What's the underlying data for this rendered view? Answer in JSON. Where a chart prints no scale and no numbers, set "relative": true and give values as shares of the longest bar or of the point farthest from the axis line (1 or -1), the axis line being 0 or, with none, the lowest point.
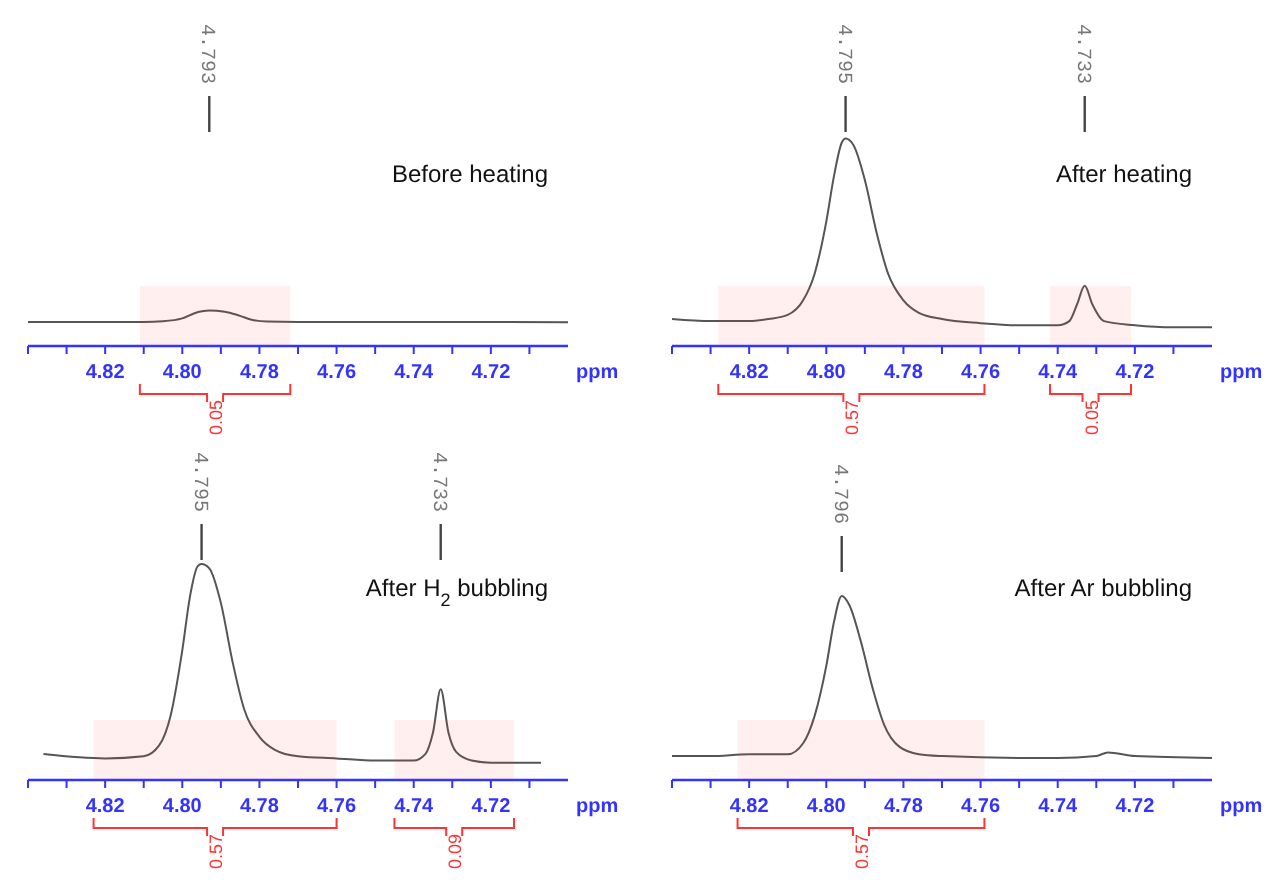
{
  "chart_data": [
    {
      "type": "line",
      "title": "Before heating",
      "xlabel": "ppm",
      "xlim": [
        4.84,
        4.7
      ],
      "relative": true,
      "xticks": [
        {
          "value": 4.84,
          "label": null
        },
        {
          "value": 4.83,
          "label": null
        },
        {
          "value": 4.82,
          "label": "4.82"
        },
        {
          "value": 4.81,
          "label": null
        },
        {
          "value": 4.8,
          "label": "4.80"
        },
        {
          "value": 4.79,
          "label": null
        },
        {
          "value": 4.78,
          "label": "4.78"
        },
        {
          "value": 4.77,
          "label": null
        },
        {
          "value": 4.76,
          "label": "4.76"
        },
        {
          "value": 4.75,
          "label": null
        },
        {
          "value": 4.74,
          "label": "4.74"
        },
        {
          "value": 4.73,
          "label": null
        },
        {
          "value": 4.72,
          "label": "4.72"
        },
        {
          "value": 4.71,
          "label": null
        }
      ],
      "series": [
        {
          "color": "#555555",
          "x": [
            4.84,
            4.82,
            4.81,
            4.805,
            4.8,
            4.797,
            4.793,
            4.789,
            4.785,
            4.782,
            4.778,
            4.77,
            4.75,
            4.73,
            4.7
          ],
          "values": [
            0.68,
            0.68,
            0.68,
            0.7,
            0.78,
            0.92,
            1,
            0.97,
            0.85,
            0.74,
            0.69,
            0.68,
            0.68,
            0.68,
            0.67
          ]
        }
      ],
      "annotations": [
        {
          "text": "4.793",
          "x": 4.793
        }
      ],
      "bands": [
        {
          "axis": "x",
          "from": 4.811,
          "to": 4.772,
          "label": "0.05",
          "color": "#ff3333"
        }
      ]
    },
    {
      "type": "line",
      "title": "After heating",
      "xlabel": "ppm",
      "xlim": [
        4.84,
        4.7
      ],
      "relative": true,
      "xticks": [
        {
          "value": 4.84,
          "label": null
        },
        {
          "value": 4.83,
          "label": null
        },
        {
          "value": 4.82,
          "label": "4.82"
        },
        {
          "value": 4.81,
          "label": null
        },
        {
          "value": 4.8,
          "label": "4.80"
        },
        {
          "value": 4.79,
          "label": null
        },
        {
          "value": 4.78,
          "label": "4.78"
        },
        {
          "value": 4.77,
          "label": null
        },
        {
          "value": 4.76,
          "label": "4.76"
        },
        {
          "value": 4.75,
          "label": null
        },
        {
          "value": 4.74,
          "label": "4.74"
        },
        {
          "value": 4.73,
          "label": null
        },
        {
          "value": 4.72,
          "label": "4.72"
        },
        {
          "value": 4.71,
          "label": null
        }
      ],
      "series": [
        {
          "color": "#555555",
          "x": [
            4.84,
            4.83,
            4.82,
            4.815,
            4.81,
            4.806,
            4.803,
            4.8,
            4.798,
            4.796,
            4.795,
            4.793,
            4.79,
            4.787,
            4.784,
            4.78,
            4.776,
            4.77,
            4.76,
            4.75,
            4.74,
            4.737,
            4.735,
            4.733,
            4.731,
            4.728,
            4.72,
            4.71,
            4.7
          ],
          "values": [
            0.13,
            0.12,
            0.12,
            0.13,
            0.15,
            0.22,
            0.35,
            0.6,
            0.82,
            0.98,
            1,
            0.97,
            0.8,
            0.55,
            0.35,
            0.22,
            0.16,
            0.13,
            0.11,
            0.1,
            0.1,
            0.12,
            0.2,
            0.29,
            0.2,
            0.12,
            0.1,
            0.09,
            0.09
          ]
        }
      ],
      "annotations": [
        {
          "text": "4.795",
          "x": 4.795
        },
        {
          "text": "4.733",
          "x": 4.733
        }
      ],
      "bands": [
        {
          "axis": "x",
          "from": 4.828,
          "to": 4.759,
          "label": "0.57",
          "color": "#ff3333"
        },
        {
          "axis": "x",
          "from": 4.742,
          "to": 4.721,
          "label": "0.05",
          "color": "#ff3333"
        }
      ]
    },
    {
      "type": "line",
      "title": "After H$_{2}$ bubbling",
      "xlabel": "ppm",
      "xlim": [
        4.84,
        4.7
      ],
      "relative": true,
      "xticks": [
        {
          "value": 4.84,
          "label": null
        },
        {
          "value": 4.83,
          "label": null
        },
        {
          "value": 4.82,
          "label": "4.82"
        },
        {
          "value": 4.81,
          "label": null
        },
        {
          "value": 4.8,
          "label": "4.80"
        },
        {
          "value": 4.79,
          "label": null
        },
        {
          "value": 4.78,
          "label": "4.78"
        },
        {
          "value": 4.77,
          "label": null
        },
        {
          "value": 4.76,
          "label": "4.76"
        },
        {
          "value": 4.75,
          "label": null
        },
        {
          "value": 4.74,
          "label": "4.74"
        },
        {
          "value": 4.73,
          "label": null
        },
        {
          "value": 4.72,
          "label": "4.72"
        },
        {
          "value": 4.71,
          "label": null
        }
      ],
      "series": [
        {
          "color": "#555555",
          "x": [
            4.836,
            4.82,
            4.81,
            4.806,
            4.803,
            4.8,
            4.798,
            4.796,
            4.795,
            4.793,
            4.79,
            4.787,
            4.784,
            4.78,
            4.776,
            4.77,
            4.76,
            4.75,
            4.74,
            4.737,
            4.735,
            4.733,
            4.731,
            4.729,
            4.725,
            4.72,
            4.707
          ],
          "values": [
            0.12,
            0.1,
            0.11,
            0.16,
            0.3,
            0.6,
            0.85,
            0.99,
            1,
            0.98,
            0.82,
            0.55,
            0.33,
            0.2,
            0.14,
            0.11,
            0.1,
            0.09,
            0.09,
            0.12,
            0.22,
            0.42,
            0.22,
            0.13,
            0.09,
            0.08,
            0.08
          ]
        }
      ],
      "annotations": [
        {
          "text": "4.795",
          "x": 4.795
        },
        {
          "text": "4.733",
          "x": 4.733
        }
      ],
      "bands": [
        {
          "axis": "x",
          "from": 4.823,
          "to": 4.76,
          "label": "0.57",
          "color": "#ff3333"
        },
        {
          "axis": "x",
          "from": 4.745,
          "to": 4.714,
          "label": "0.09",
          "color": "#ff3333"
        }
      ]
    },
    {
      "type": "line",
      "title": "After Ar bubbling",
      "xlabel": "ppm",
      "xlim": [
        4.84,
        4.7
      ],
      "relative": true,
      "xticks": [
        {
          "value": 4.84,
          "label": null
        },
        {
          "value": 4.83,
          "label": null
        },
        {
          "value": 4.82,
          "label": "4.82"
        },
        {
          "value": 4.81,
          "label": null
        },
        {
          "value": 4.8,
          "label": "4.80"
        },
        {
          "value": 4.79,
          "label": null
        },
        {
          "value": 4.78,
          "label": "4.78"
        },
        {
          "value": 4.77,
          "label": null
        },
        {
          "value": 4.76,
          "label": "4.76"
        },
        {
          "value": 4.75,
          "label": null
        },
        {
          "value": 4.74,
          "label": "4.74"
        },
        {
          "value": 4.73,
          "label": null
        },
        {
          "value": 4.72,
          "label": "4.72"
        },
        {
          "value": 4.71,
          "label": null
        }
      ],
      "series": [
        {
          "color": "#555555",
          "x": [
            4.84,
            4.83,
            4.82,
            4.81,
            4.806,
            4.803,
            4.8,
            4.798,
            4.796,
            4.794,
            4.791,
            4.788,
            4.785,
            4.781,
            4.776,
            4.77,
            4.75,
            4.74,
            4.73,
            4.727,
            4.72,
            4.7
          ],
          "values": [
            0.13,
            0.13,
            0.14,
            0.14,
            0.2,
            0.35,
            0.62,
            0.86,
            1,
            0.95,
            0.75,
            0.5,
            0.3,
            0.18,
            0.14,
            0.13,
            0.12,
            0.12,
            0.13,
            0.15,
            0.13,
            0.12
          ]
        }
      ],
      "annotations": [
        {
          "text": "4.796",
          "x": 4.796
        }
      ],
      "bands": [
        {
          "axis": "x",
          "from": 4.823,
          "to": 4.759,
          "label": "0.57",
          "color": "#ff3333"
        }
      ]
    }
  ]
}
